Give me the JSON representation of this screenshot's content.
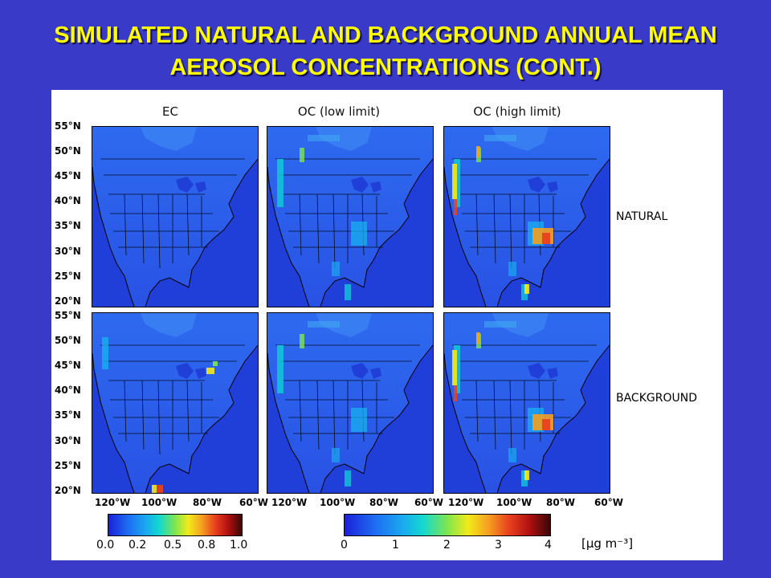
{
  "slide": {
    "title_line1": "SIMULATED NATURAL AND BACKGROUND ANNUAL MEAN",
    "title_line2": "AEROSOL CONCENTRATIONS (CONT.)"
  },
  "figure": {
    "columns": [
      "EC",
      "OC (low limit)",
      "OC (high limit)"
    ],
    "rows": [
      "NATURAL",
      "BACKGROUND"
    ],
    "latitudes": [
      "55°N",
      "50°N",
      "45°N",
      "40°N",
      "35°N",
      "30°N",
      "25°N",
      "20°N"
    ],
    "longitudes_panel1": [
      "120°W",
      "100°W",
      "80°W",
      "60°W"
    ],
    "longitudes_panel2": [
      "120°W",
      "100°W",
      "80°W",
      "60°W"
    ],
    "longitudes_panel3": [
      "120°W",
      "100°W",
      "80°W",
      "60°W"
    ],
    "colorbar_ec": {
      "ticks": [
        "0.0",
        "0.2",
        "0.5",
        "0.8",
        "1.0"
      ]
    },
    "colorbar_oc": {
      "ticks": [
        "0",
        "1",
        "2",
        "3",
        "4"
      ]
    },
    "units": "[μg m⁻³]",
    "colors": {
      "background": "#3a3ac8",
      "title": "#ffff00",
      "map_ocean": "#1f3fd8",
      "map_land_low": "#2a6cf0"
    }
  }
}
